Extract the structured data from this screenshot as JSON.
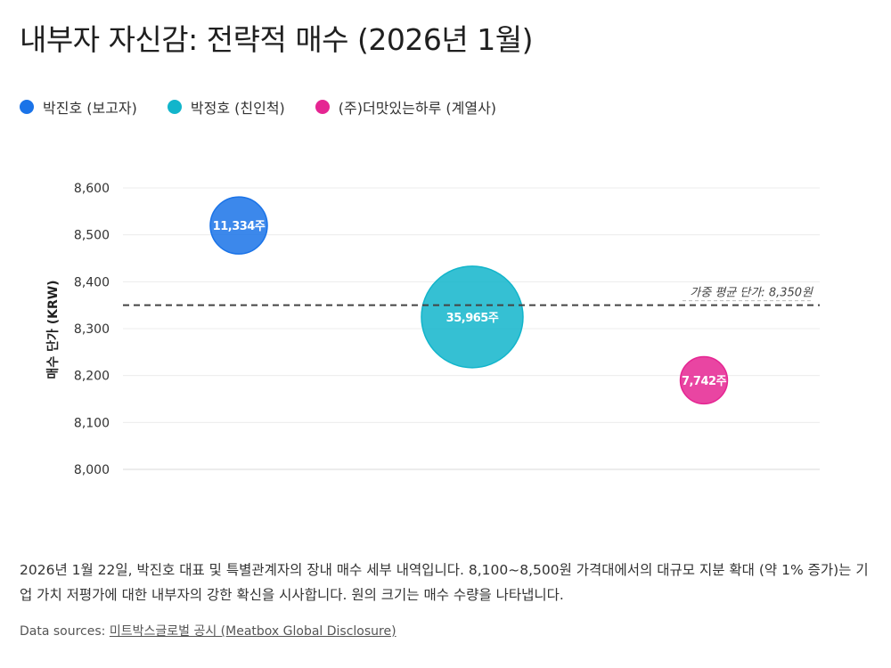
{
  "title": "내부자 자신감: 전략적 매수 (2026년 1월)",
  "legend": [
    {
      "label": "박진호 (보고자)",
      "color": "#1a73e8"
    },
    {
      "label": "박정호 (친인척)",
      "color": "#12b5cb"
    },
    {
      "label": "(주)더맛있는하루 (계열사)",
      "color": "#e52592"
    }
  ],
  "chart_data": {
    "type": "scatter",
    "ylabel": "매수 단가 (KRW)",
    "ylim": [
      8000,
      8600
    ],
    "yticks": [
      "8,000",
      "8,100",
      "8,200",
      "8,300",
      "8,400",
      "8,500",
      "8,600"
    ],
    "grid": true,
    "points": [
      {
        "series": 0,
        "y": 8520,
        "size": 11334,
        "label": "11,334주"
      },
      {
        "series": 1,
        "y": 8325,
        "size": 35965,
        "label": "35,965주"
      },
      {
        "series": 2,
        "y": 8190,
        "size": 7742,
        "label": "7,742주"
      }
    ],
    "reference_line": {
      "y": 8350,
      "label": "가중 평균 단가: 8,350원"
    }
  },
  "caption": "2026년 1월 22일, 박진호 대표 및 특별관계자의 장내 매수 세부 내역입니다. 8,100~8,500원 가격대에서의 대규모 지분 확대 (약 1% 증가)는 기업 가치 저평가에 대한 내부자의 강한 확신을 시사합니다. 원의 크기는 매수 수량을 나타냅니다.",
  "sources": {
    "prefix": "Data sources:",
    "link": "미트박스글로벌 공시 (Meatbox Global Disclosure)"
  }
}
